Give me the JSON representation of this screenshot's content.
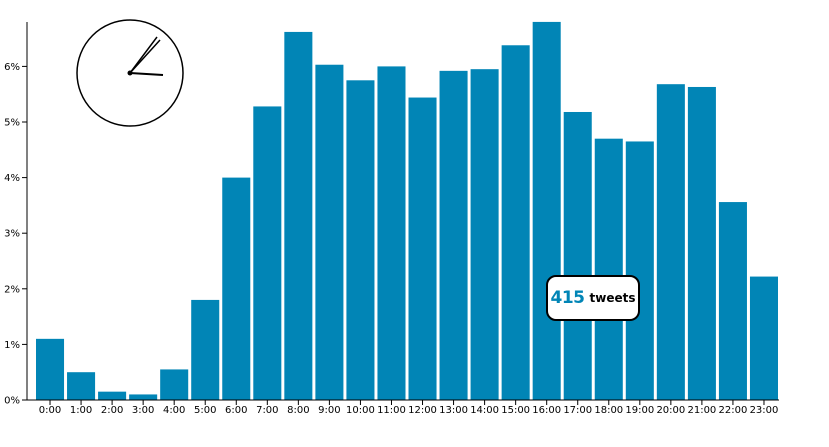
{
  "chart_data": {
    "type": "bar",
    "title": "",
    "xlabel": "",
    "ylabel": "",
    "categories": [
      "0:00",
      "1:00",
      "2:00",
      "3:00",
      "4:00",
      "5:00",
      "6:00",
      "7:00",
      "8:00",
      "9:00",
      "10:00",
      "11:00",
      "12:00",
      "13:00",
      "14:00",
      "15:00",
      "16:00",
      "17:00",
      "18:00",
      "19:00",
      "20:00",
      "21:00",
      "22:00",
      "23:00"
    ],
    "values": [
      1.1,
      0.5,
      0.15,
      0.1,
      0.55,
      1.8,
      4.0,
      5.28,
      6.62,
      6.03,
      5.75,
      6.0,
      5.44,
      5.92,
      5.95,
      6.38,
      6.8,
      5.18,
      4.7,
      4.65,
      5.68,
      5.63,
      3.56,
      2.22
    ],
    "yticks": [
      "0%",
      "1%",
      "2%",
      "3%",
      "4%",
      "5%",
      "6%"
    ],
    "ylim": [
      0,
      6.8
    ],
    "grid": false,
    "legend": "none",
    "colors": {
      "bar": "#0185b6"
    }
  },
  "badge": {
    "count": "415",
    "label": "tweets"
  },
  "clock_icon": "clock-icon"
}
